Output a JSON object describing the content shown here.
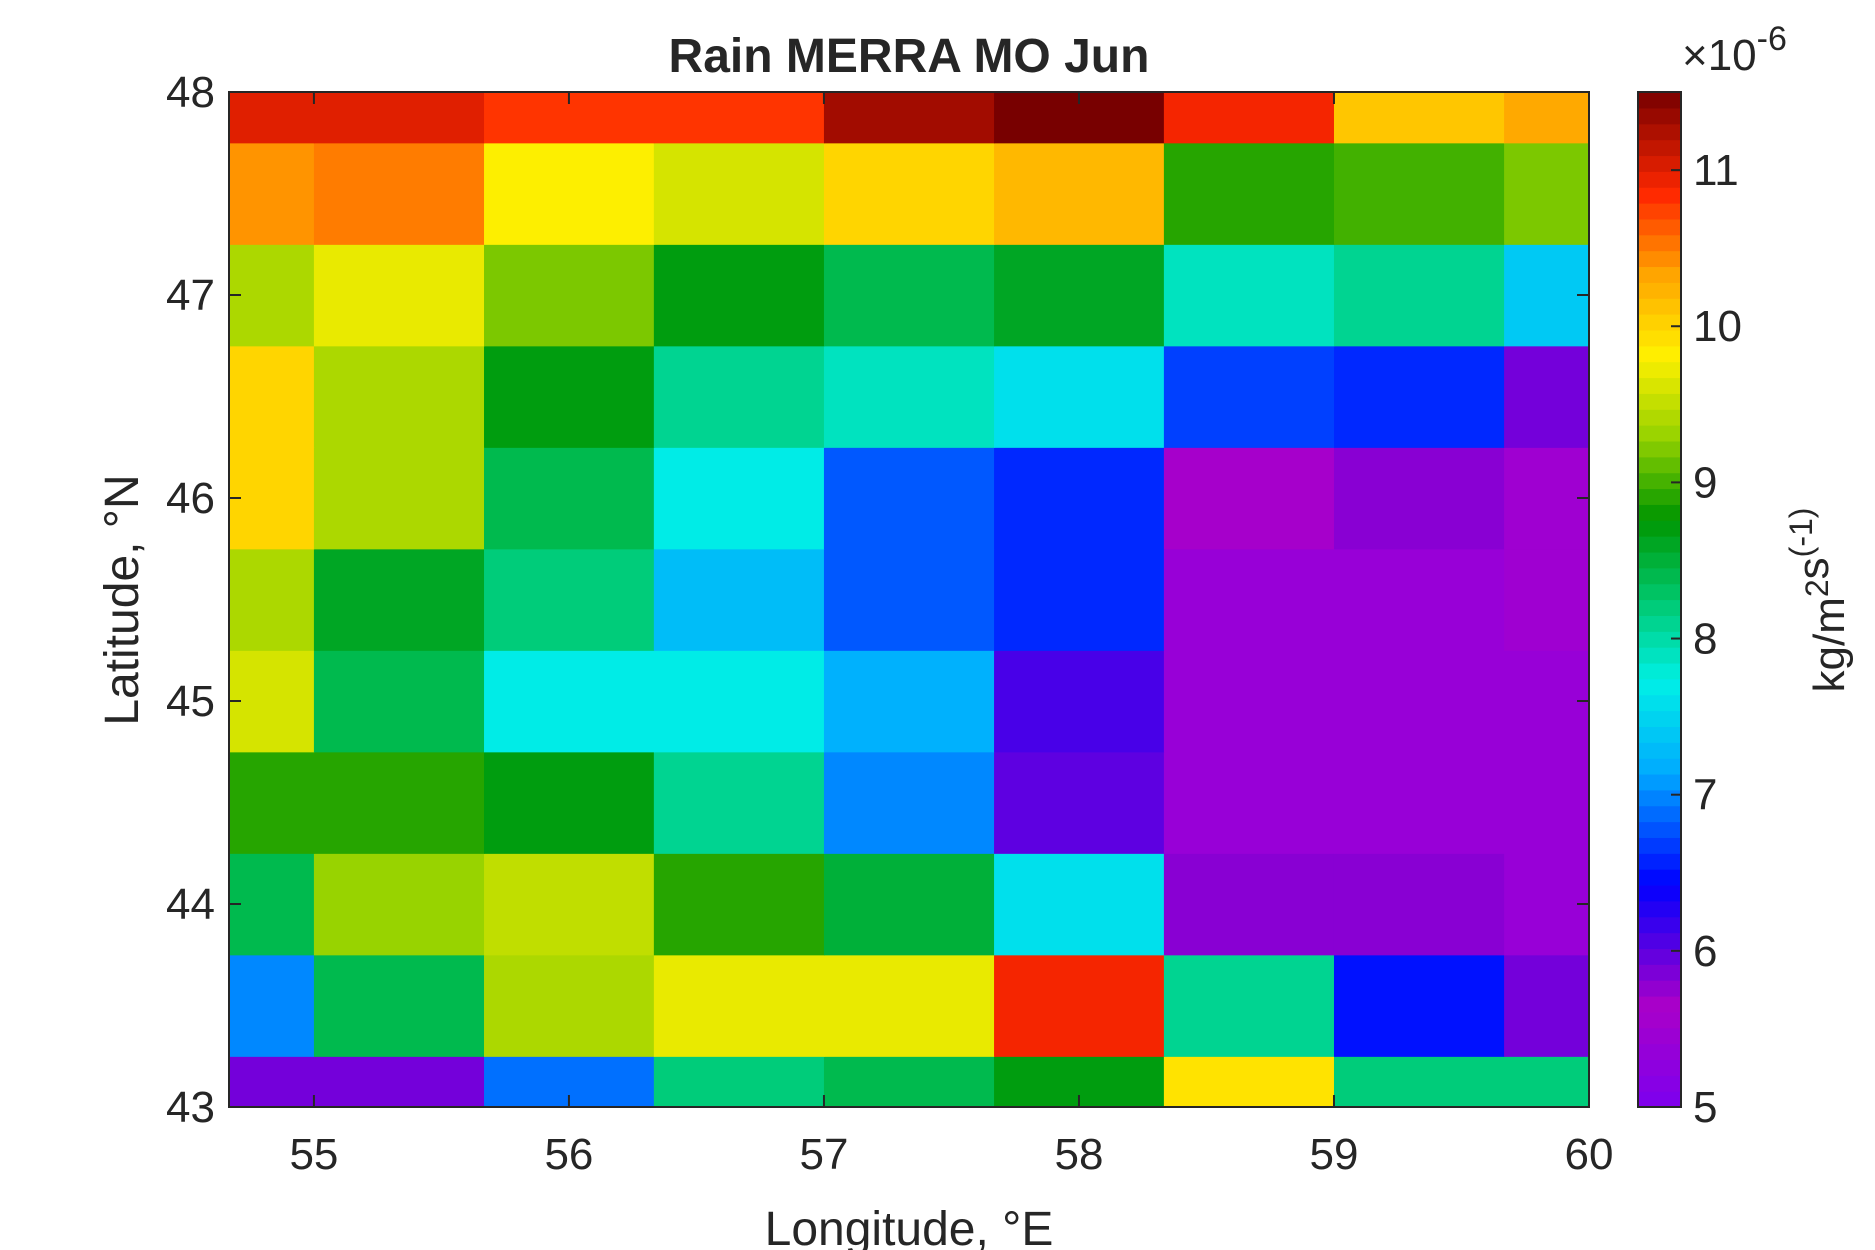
{
  "chart_data": {
    "type": "heatmap",
    "title": "Rain MERRA MO Jun",
    "xlabel": "Longitude, °E",
    "ylabel": "Latitude, °N",
    "colorbar_label": "kg/m^2s^(-1)",
    "colorbar_exponent": "×10^-6",
    "colormap": "jet-like (purple → blue → cyan → green → yellow → orange → red → dark red)",
    "xlim": [
      54.667,
      60
    ],
    "ylim": [
      43,
      48
    ],
    "clim": [
      5,
      11.5
    ],
    "x_ticks": [
      55,
      56,
      57,
      58,
      59,
      60
    ],
    "y_ticks": [
      43,
      44,
      45,
      46,
      47,
      48
    ],
    "colorbar_ticks": [
      5,
      6,
      7,
      8,
      9,
      10,
      11
    ],
    "lon_edges": [
      54.667,
      55,
      55.667,
      56.333,
      57,
      57.667,
      58.333,
      59,
      59.667,
      60
    ],
    "lat_edges": [
      43,
      43.25,
      43.75,
      44.25,
      44.75,
      45.25,
      45.75,
      46.25,
      46.75,
      47.25,
      47.75,
      48
    ],
    "values_x1e6_rows_south_to_north": [
      [
        5.9,
        5.9,
        6.9,
        8.2,
        8.4,
        8.7,
        9.9,
        8.2,
        8.2
      ],
      [
        7.0,
        8.4,
        9.4,
        9.7,
        9.7,
        10.9,
        8.1,
        6.5,
        5.9
      ],
      [
        8.4,
        9.3,
        9.5,
        8.9,
        8.5,
        7.6,
        5.8,
        5.8,
        5.4
      ],
      [
        8.9,
        8.9,
        8.7,
        8.1,
        7.0,
        6.0,
        5.4,
        5.4,
        5.4
      ],
      [
        9.6,
        8.4,
        7.7,
        7.7,
        7.2,
        6.1,
        5.4,
        5.4,
        5.4
      ],
      [
        9.4,
        8.6,
        8.2,
        7.3,
        6.8,
        6.6,
        5.4,
        5.4,
        5.5
      ],
      [
        10.0,
        9.4,
        8.4,
        7.7,
        6.8,
        6.6,
        5.6,
        5.8,
        5.5
      ],
      [
        10.0,
        9.4,
        8.7,
        8.1,
        7.9,
        7.6,
        6.7,
        6.6,
        5.9
      ],
      [
        9.4,
        9.7,
        9.2,
        8.7,
        8.4,
        8.6,
        7.9,
        8.1,
        7.4
      ],
      [
        10.4,
        10.5,
        9.8,
        9.6,
        10.0,
        10.2,
        8.9,
        9.0,
        9.2
      ],
      [
        11.0,
        11.0,
        10.8,
        10.8,
        11.3,
        11.5,
        10.9,
        10.1,
        10.3
      ]
    ]
  }
}
